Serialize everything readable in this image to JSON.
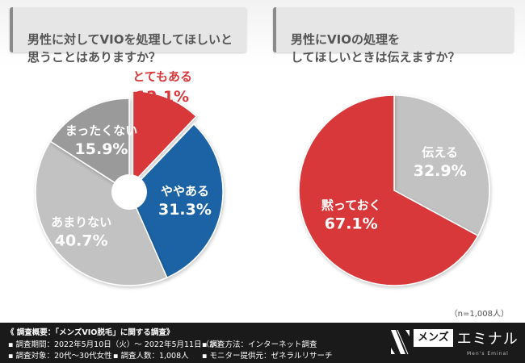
{
  "questions": {
    "q1": "男性に対してVIOを処理してほしいと\n思うことはありますか？",
    "q2": "男性にVIOの処理を\nしてほしいときは伝えますか？"
  },
  "chart_data": [
    {
      "type": "pie",
      "style": "donut",
      "title": "男性に対してVIOを処理してほしいと思うことはありますか？",
      "categories": [
        "とてもある",
        "ややある",
        "あまりない",
        "まったくない"
      ],
      "values": [
        12.1,
        31.3,
        40.7,
        15.9
      ],
      "value_labels": [
        "12.1%",
        "31.3%",
        "40.7%",
        "15.9%"
      ],
      "colors": [
        "#d9383a",
        "#1f64a6",
        "#c2c2c2",
        "#9a9a9a"
      ],
      "label_colors": [
        "#d9383a",
        "#ffffff",
        "#ffffff",
        "#ffffff"
      ],
      "exploded": "とてもある"
    },
    {
      "type": "pie",
      "title": "男性にVIOの処理をしてほしいときは伝えますか？",
      "categories": [
        "伝える",
        "黙っておく"
      ],
      "values": [
        32.9,
        67.1
      ],
      "value_labels": [
        "32.9%",
        "67.1%"
      ],
      "colors": [
        "#c2c2c2",
        "#d9383a"
      ],
      "label_colors": [
        "#ffffff",
        "#ffffff"
      ]
    }
  ],
  "sample_note": "（n=1,008人）",
  "footer": {
    "title": "《 調査概要：「メンズVIO脱毛」に関する調査》",
    "period": "調査期間：2022年5月10日（火）～ 2022年5月11日（水）",
    "target": "調査対象：20代～30代女性",
    "respondents": "調査人数：1,008人",
    "method": "調査方法：インターネット調査",
    "provider": "モニター提供元：ゼネラルリサーチ"
  },
  "logo": {
    "box": "メンズ",
    "rest": "エミナル",
    "tag": "Men's Eminal"
  }
}
